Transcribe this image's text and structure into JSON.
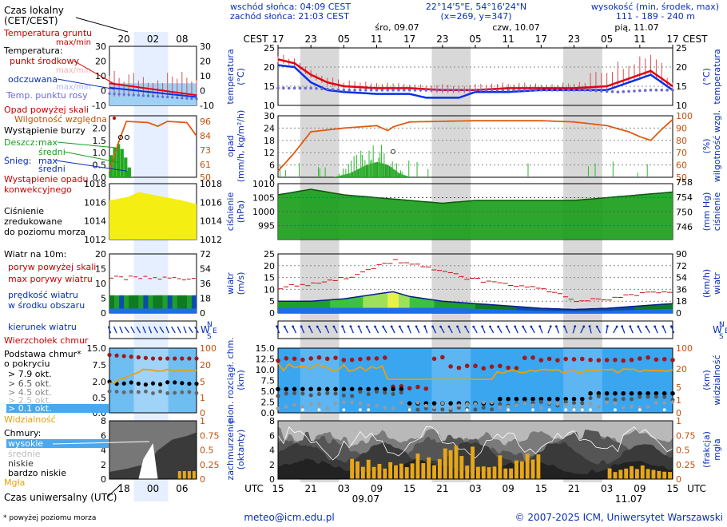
{
  "header": {
    "sunrise": "wschód słońca: 04:09 CEST",
    "sunset": "zachód słońca: 21:03 CEST",
    "coords": "22°14'5\"E, 54°16'24\"N",
    "grid": "(x=269, y=347)",
    "elevation_title": "wysokość (min, środek, max)",
    "elevation": "111 - 189 - 240 m",
    "day_wed": "śro, 09.07",
    "day_thu": "czw, 10.07",
    "day_fri": "pią, 11.07",
    "tz": "CEST"
  },
  "local_time_ticks": [
    "17",
    "23",
    "05",
    "11",
    "17",
    "23",
    "05",
    "11",
    "17",
    "23",
    "05",
    "11",
    "17"
  ],
  "utc_ticks": [
    "15",
    "21",
    "03",
    "09",
    "15",
    "21",
    "03",
    "09",
    "15",
    "21",
    "03",
    "09",
    "15"
  ],
  "utc_dates": [
    "09.07",
    "11.07"
  ],
  "legend": {
    "local_time": "Czas lokalny",
    "local_time_tz": "(CET/CEST)",
    "legend_local_ticks": [
      "20",
      "02",
      "08"
    ],
    "legend_utc_ticks": [
      "18",
      "00",
      "06"
    ],
    "t_ground": "Temperatura gruntu",
    "t_ground_sub": "max/min",
    "t_title": "Temperatura:",
    "t_mid": "punkt środkowy",
    "t_minmax": "max/min",
    "t_feel": "odczuwana",
    "t_feel_minmax": "max/min",
    "t_dew": "Temp. punktu rosy",
    "precip_above": "Opad powyżej skali",
    "humidity": "Wilgotność względna",
    "storm": "Wystąpienie burzy",
    "rain": "Deszcz:",
    "snow": "Śnieg:",
    "max": "max",
    "mid": "średni",
    "conv": "Wystąpienie opadu",
    "conv2": "konwekcyjnego",
    "pressure1": "Ciśnienie",
    "pressure2": "zredukowane",
    "pressure3": "do poziomu morza",
    "wind_title": "Wiatr na 10m:",
    "gust_above": "poryw powyżej skali",
    "gust_max": "max porywy wiatru",
    "wind_speed": "prędkość wiatru",
    "wind_area": "w środku obszaru",
    "wind_dir": "kierunek wiatru",
    "cloud_top": "Wierzchołek chmur",
    "cloud_base": "Podstawa chmur*",
    "cloud_cov": "o pokryciu",
    "okt79": "> 7.9 okt.",
    "okt65": "> 6.5 okt.",
    "okt45": "> 4.5 okt.",
    "okt25": "> 2.5 okt.",
    "okt01": "> 0.1 okt.",
    "visibility": "Widzialność",
    "clouds": "Chmury:",
    "high": "wysokie",
    "middle": "średnie",
    "low": "niskie",
    "vlow": "bardzo niskie",
    "fog": "Mgła",
    "utc": "Czas uniwersalny (UTC)",
    "footnote": "* powyżej poziomu morza"
  },
  "panels": {
    "temp_l": "temperatura",
    "temp_unit": "(°C)",
    "precip_l": "opad",
    "precip_unit": "(mm/h, kg/m²/h)",
    "hum_l": "wilgotność wzgl.",
    "hum_unit": "(%)",
    "pres_l": "ciśnienie",
    "pres_unit": "(hPa)",
    "pres_unit_r": "(mm Hg)",
    "wind_l": "wiatr",
    "wind_unit": "(m/s)",
    "wind_unit_r": "(km/h)",
    "cloud_l": "pion. rozciągł. chm.",
    "cloud_unit": "(km)",
    "vis_l": "widzialność",
    "vis_unit": "(km)",
    "cov_l": "zachmurzenie",
    "cov_unit": "(oktanty)",
    "fog_l": "mgła",
    "fog_unit": "(frakcja)"
  },
  "footer": {
    "email": "meteo@icm.edu.pl",
    "copyright": "© 2007-2025 ICM, Uniwersytet Warszawski",
    "utc_label": "UTC"
  },
  "chart_data": {
    "type": "line",
    "forecast_start_utc": "2025-07-09 15:00",
    "step_hours": 1,
    "hours": 72,
    "temperature": {
      "ylim": [
        10,
        25
      ],
      "ticks": [
        10,
        15,
        20,
        25
      ],
      "mid_keypoints": [
        [
          0,
          22
        ],
        [
          3,
          21
        ],
        [
          6,
          18
        ],
        [
          9,
          16
        ],
        [
          12,
          15
        ],
        [
          18,
          14.5
        ],
        [
          24,
          14.5
        ],
        [
          30,
          14
        ],
        [
          36,
          14
        ],
        [
          42,
          14.5
        ],
        [
          48,
          14.5
        ],
        [
          54,
          14.5
        ],
        [
          60,
          15
        ],
        [
          64,
          17
        ],
        [
          66,
          18
        ],
        [
          68,
          19
        ],
        [
          70,
          17
        ],
        [
          72,
          15
        ]
      ],
      "feel_keypoints": [
        [
          0,
          20.5
        ],
        [
          3,
          20
        ],
        [
          6,
          16
        ],
        [
          9,
          14
        ],
        [
          12,
          13.5
        ],
        [
          18,
          13
        ],
        [
          24,
          13
        ],
        [
          27,
          12
        ],
        [
          33,
          12
        ],
        [
          36,
          13.5
        ],
        [
          42,
          13.5
        ],
        [
          48,
          14
        ],
        [
          54,
          14
        ],
        [
          60,
          14
        ],
        [
          64,
          16
        ],
        [
          66,
          17
        ],
        [
          68,
          18
        ],
        [
          70,
          16
        ],
        [
          72,
          14
        ]
      ],
      "dew_keypoints": [
        [
          0,
          14.5
        ],
        [
          6,
          14.5
        ],
        [
          12,
          14
        ],
        [
          24,
          14
        ],
        [
          36,
          14
        ],
        [
          48,
          14
        ],
        [
          56,
          14
        ],
        [
          62,
          13.5
        ],
        [
          68,
          14
        ],
        [
          72,
          14
        ]
      ]
    },
    "humidity": {
      "ylim": [
        50,
        100
      ],
      "ticks": [
        50,
        60,
        70,
        80,
        90,
        100
      ],
      "keypoints": [
        [
          0,
          55
        ],
        [
          3,
          70
        ],
        [
          6,
          87
        ],
        [
          12,
          90
        ],
        [
          18,
          92
        ],
        [
          20,
          88
        ],
        [
          21,
          91
        ],
        [
          24,
          95
        ],
        [
          36,
          96
        ],
        [
          48,
          96
        ],
        [
          54,
          95
        ],
        [
          60,
          92
        ],
        [
          64,
          87
        ],
        [
          66,
          83
        ],
        [
          68,
          80
        ],
        [
          70,
          89
        ],
        [
          72,
          97
        ]
      ]
    },
    "precipitation": {
      "ylim": [
        0,
        30
      ],
      "ticks": [
        0,
        6,
        12,
        18,
        24,
        30
      ],
      "mid_keypoints": [
        [
          0,
          0
        ],
        [
          10,
          0
        ],
        [
          13,
          2
        ],
        [
          16,
          6
        ],
        [
          18,
          7.5
        ],
        [
          20,
          6
        ],
        [
          22,
          2
        ],
        [
          24,
          0
        ],
        [
          72,
          0
        ]
      ],
      "max_keypoints": [
        [
          0,
          0
        ],
        [
          10,
          0
        ],
        [
          12,
          5
        ],
        [
          16,
          18
        ],
        [
          18,
          19
        ],
        [
          20,
          12
        ],
        [
          22,
          4
        ],
        [
          24,
          0
        ],
        [
          72,
          0
        ]
      ]
    },
    "pressure": {
      "ylim": [
        990,
        1010
      ],
      "ticks": [
        995,
        1000,
        1005,
        1010
      ],
      "ticks_mmhg": [
        746,
        750,
        754,
        758
      ],
      "keypoints": [
        [
          0,
          1006
        ],
        [
          6,
          1008
        ],
        [
          9,
          1007
        ],
        [
          12,
          1006
        ],
        [
          18,
          1005
        ],
        [
          24,
          1004
        ],
        [
          30,
          1003
        ],
        [
          36,
          1004
        ],
        [
          42,
          1004
        ],
        [
          48,
          1004
        ],
        [
          54,
          1004
        ],
        [
          60,
          1005
        ],
        [
          66,
          1006
        ],
        [
          72,
          1007
        ]
      ]
    },
    "wind": {
      "ylim": [
        0,
        25
      ],
      "ticks": [
        0,
        5,
        10,
        15,
        20,
        25
      ],
      "ticks_kmh": [
        0,
        18,
        36,
        54,
        72,
        90
      ],
      "speed_keypoints": [
        [
          0,
          5
        ],
        [
          6,
          5
        ],
        [
          12,
          6
        ],
        [
          18,
          8
        ],
        [
          21,
          9
        ],
        [
          24,
          7
        ],
        [
          30,
          5
        ],
        [
          36,
          4
        ],
        [
          42,
          3
        ],
        [
          48,
          2
        ],
        [
          54,
          1.5
        ],
        [
          60,
          2
        ],
        [
          66,
          3
        ],
        [
          72,
          4
        ]
      ],
      "gust_keypoints": [
        [
          0,
          11
        ],
        [
          6,
          12
        ],
        [
          12,
          15
        ],
        [
          16,
          18
        ],
        [
          18,
          20
        ],
        [
          21,
          22
        ],
        [
          24,
          21
        ],
        [
          30,
          17
        ],
        [
          36,
          14
        ],
        [
          42,
          12
        ],
        [
          48,
          10
        ],
        [
          54,
          5
        ],
        [
          60,
          6
        ],
        [
          66,
          8
        ],
        [
          72,
          9
        ]
      ]
    },
    "cloud": {
      "ylim": [
        0,
        15
      ],
      "ticks": [
        0,
        2.5,
        5,
        7.5,
        10,
        12.5,
        15
      ],
      "vis_ticks": [
        0,
        1,
        5,
        20,
        100
      ]
    },
    "coverage": {
      "ylim": [
        0,
        8
      ],
      "ticks": [
        0,
        2,
        4,
        6,
        8
      ],
      "fog_ticks": [
        0,
        0.25,
        0.5,
        0.75,
        1
      ]
    }
  },
  "colors": {
    "temp": "#e00010",
    "feel": "#0a2fe8",
    "dew": "#6a68d8",
    "humidity": "#e05a10",
    "precip": "#1f9e1f",
    "pressure_fill": "#1a9e1a",
    "wind_gust": "#cc1111",
    "cloud_bg": "#3aa6ef",
    "night": "#d8d8d8",
    "fog_bar": "#e6a718"
  }
}
